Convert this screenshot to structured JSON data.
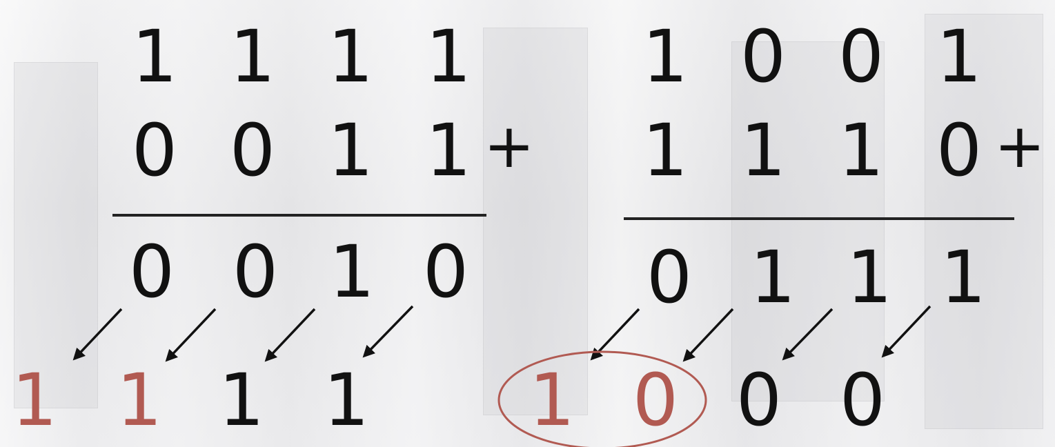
{
  "background": {
    "tone": "#e9e9ea",
    "description_icon": "computer-racks-photo"
  },
  "colors": {
    "digit": "#111111",
    "carry_highlight": "#b15a52",
    "circle": "#b15a52",
    "arrow": "#111111"
  },
  "left_problem": {
    "row1": [
      "1",
      "1",
      "1",
      "1"
    ],
    "row2": [
      "0",
      "0",
      "1",
      "1"
    ],
    "operator": "+",
    "result": [
      "0",
      "0",
      "1",
      "0"
    ],
    "carries": [
      "1",
      "1",
      "1",
      "1"
    ],
    "carries_highlighted": [
      true,
      true,
      false,
      false
    ]
  },
  "right_problem": {
    "row1": [
      "1",
      "0",
      "0",
      "1"
    ],
    "row2": [
      "1",
      "1",
      "1",
      "0"
    ],
    "operator": "+",
    "result": [
      "0",
      "1",
      "1",
      "1"
    ],
    "carries": [
      "1",
      "0",
      "0",
      "0"
    ],
    "carries_highlighted": [
      true,
      true,
      false,
      false
    ],
    "circled_carries": [
      0,
      1
    ]
  }
}
